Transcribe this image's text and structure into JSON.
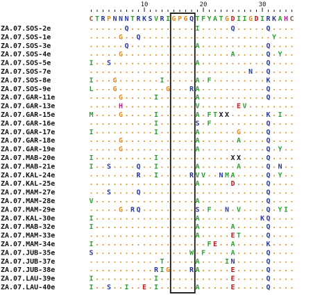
{
  "colors": {
    "A": "#2e9e2e",
    "C": "#8a5a2a",
    "D": "#c01818",
    "E": "#c01818",
    "F": "#2e9e2e",
    "G": "#e08a1a",
    "H": "#c01898",
    "I": "#2e9e2e",
    "K": "#2a3a9a",
    "L": "#2e9e2e",
    "M": "#2e9e2e",
    "N": "#2a3a9a",
    "P": "#e08a1a",
    "Q": "#2a3a9a",
    "R": "#2a3a9a",
    "S": "#2a3a9a",
    "T": "#2e9e2e",
    "V": "#2e9e2e",
    "W": "#2e9e2e",
    "X": "#111111",
    "Y": "#2e9e2e",
    "dot": "#e08a1a"
  },
  "ruler": {
    "ticks": [
      {
        "label": "10",
        "col": 10
      },
      {
        "label": "20",
        "col": 20
      },
      {
        "label": "30",
        "col": 30
      }
    ]
  },
  "consensus": "CTRPNNNTRK SVRIGPGQTF YATGDIIGDI RKAHC",
  "rows": [
    {
      "name": "ZA.07.SOS-2e",
      "residues": [
        [
          7,
          "Q"
        ],
        [
          19,
          "I"
        ],
        [
          25,
          "Q"
        ],
        [
          31,
          "Q"
        ]
      ]
    },
    {
      "name": "ZA.07.SOS-1e",
      "residues": [
        [
          6,
          "G"
        ],
        [
          9,
          "Q"
        ],
        [
          32,
          "Y"
        ]
      ]
    },
    {
      "name": "ZA.07.SOS-3e",
      "residues": [
        [
          7,
          "Q"
        ],
        [
          19,
          "A"
        ],
        [
          31,
          "Q"
        ]
      ]
    },
    {
      "name": "ZA.07.SOS-4e",
      "residues": [
        [
          6,
          "G"
        ],
        [
          25,
          "A"
        ],
        [
          31,
          "Q"
        ],
        [
          33,
          "Y"
        ]
      ]
    },
    {
      "name": "ZA.07.SOS-5e",
      "residues": [
        [
          1,
          "I"
        ],
        [
          4,
          "S"
        ],
        [
          19,
          "A"
        ],
        [
          31,
          "Q"
        ]
      ]
    },
    {
      "name": "ZA.07.SOS-7e",
      "residues": [
        [
          28,
          "N"
        ],
        [
          31,
          "Q"
        ]
      ]
    },
    {
      "name": "ZA.07.SOS-8e",
      "residues": [
        [
          1,
          "I"
        ],
        [
          5,
          "G"
        ],
        [
          13,
          "I"
        ],
        [
          19,
          "A"
        ],
        [
          21,
          "F"
        ],
        [
          31,
          "K"
        ]
      ]
    },
    {
      "name": "ZA.07.SOS-9e",
      "residues": [
        [
          1,
          "L"
        ],
        [
          5,
          "G"
        ],
        [
          14,
          "G"
        ],
        [
          18,
          "RA"
        ],
        [
          31,
          "Q"
        ]
      ]
    },
    {
      "name": "ZA.07.GAR-11e",
      "residues": [
        [
          6,
          "G"
        ],
        [
          12,
          "I"
        ],
        [
          19,
          "A"
        ],
        [
          31,
          "Q"
        ]
      ]
    },
    {
      "name": "ZA.07.GAR-13e",
      "residues": [
        [
          6,
          "H"
        ],
        [
          19,
          "V"
        ],
        [
          26,
          "E"
        ],
        [
          27,
          "V"
        ]
      ]
    },
    {
      "name": "ZA.07.GAR-15e",
      "residues": [
        [
          1,
          "M"
        ],
        [
          6,
          "G"
        ],
        [
          12,
          "I"
        ],
        [
          19,
          "A"
        ],
        [
          21,
          "F"
        ],
        [
          22,
          "T"
        ],
        [
          23,
          "X"
        ],
        [
          24,
          "X"
        ],
        [
          31,
          "K"
        ],
        [
          33,
          "I"
        ]
      ]
    },
    {
      "name": "ZA.07.GAR-16e",
      "residues": [
        [
          12,
          "I"
        ],
        [
          19,
          "S"
        ],
        [
          21,
          "F"
        ],
        [
          31,
          "Q"
        ]
      ]
    },
    {
      "name": "ZA.07.GAR-17e",
      "residues": [
        [
          1,
          "I"
        ],
        [
          12,
          "I"
        ],
        [
          19,
          "A"
        ],
        [
          26,
          "G"
        ],
        [
          31,
          "Q"
        ]
      ]
    },
    {
      "name": "ZA.07.GAR-18e",
      "residues": [
        [
          6,
          "G"
        ],
        [
          19,
          "A"
        ],
        [
          26,
          "A"
        ],
        [
          31,
          "Q"
        ]
      ]
    },
    {
      "name": "ZA.07.GAR-19e",
      "residues": [
        [
          6,
          "G"
        ],
        [
          19,
          "A"
        ],
        [
          31,
          "Q"
        ],
        [
          33,
          "Y"
        ]
      ]
    },
    {
      "name": "ZA.07.MAB-20e",
      "residues": [
        [
          1,
          "I"
        ],
        [
          12,
          "I"
        ],
        [
          25,
          "X"
        ],
        [
          26,
          "X"
        ],
        [
          31,
          "Q"
        ]
      ]
    },
    {
      "name": "ZA.07.MAB-21e",
      "residues": [
        [
          1,
          "I"
        ],
        [
          4,
          "S"
        ],
        [
          9,
          "Q"
        ],
        [
          12,
          "I"
        ],
        [
          19,
          "A"
        ],
        [
          26,
          "A"
        ],
        [
          31,
          "Q"
        ],
        [
          33,
          "N"
        ]
      ]
    },
    {
      "name": "ZA.07.KAL-24e",
      "residues": [
        [
          9,
          "R"
        ],
        [
          12,
          "I"
        ],
        [
          18,
          "R"
        ],
        [
          19,
          "V"
        ],
        [
          20,
          "V"
        ],
        [
          23,
          "N"
        ],
        [
          24,
          "M"
        ],
        [
          25,
          "A"
        ],
        [
          31,
          "Q"
        ],
        [
          33,
          "Y"
        ]
      ]
    },
    {
      "name": "ZA.07.KAL-25e",
      "residues": [
        [
          19,
          "A"
        ],
        [
          25,
          "D"
        ],
        [
          31,
          "Q"
        ]
      ]
    },
    {
      "name": "ZA.07.MAM-27e",
      "residues": [
        [
          4,
          "S"
        ],
        [
          9,
          "Q"
        ],
        [
          31,
          "Q"
        ]
      ]
    },
    {
      "name": "ZA.07.MAM-28e",
      "residues": [
        [
          1,
          "V"
        ],
        [
          19,
          "A"
        ],
        [
          31,
          "Q"
        ]
      ]
    },
    {
      "name": "ZA.07.MAM-29e",
      "residues": [
        [
          6,
          "G"
        ],
        [
          8,
          "R"
        ],
        [
          9,
          "Q"
        ],
        [
          19,
          "S"
        ],
        [
          21,
          "F"
        ],
        [
          24,
          "N"
        ],
        [
          26,
          "V"
        ],
        [
          31,
          "Q"
        ],
        [
          33,
          "Y"
        ],
        [
          34,
          "I"
        ]
      ]
    },
    {
      "name": "ZA.07.KAL-30e",
      "residues": [
        [
          1,
          "I"
        ],
        [
          19,
          "A"
        ],
        [
          30,
          "K"
        ],
        [
          31,
          "Q"
        ]
      ]
    },
    {
      "name": "ZA.07.MAB-32e",
      "residues": [
        [
          1,
          "I"
        ],
        [
          19,
          "A"
        ],
        [
          25,
          "A"
        ],
        [
          31,
          "Q"
        ]
      ]
    },
    {
      "name": "ZA.07.MAM-33e",
      "residues": [
        [
          19,
          "A"
        ],
        [
          25,
          "E"
        ],
        [
          26,
          "T"
        ],
        [
          31,
          "Q"
        ]
      ]
    },
    {
      "name": "ZA.07.MAM-34e",
      "residues": [
        [
          1,
          "I"
        ],
        [
          21,
          "F"
        ],
        [
          22,
          "E"
        ],
        [
          25,
          "A"
        ],
        [
          31,
          "K"
        ]
      ]
    },
    {
      "name": "ZA.07.JUB-35e",
      "residues": [
        [
          1,
          "S"
        ],
        [
          18,
          "W"
        ],
        [
          20,
          "F"
        ],
        [
          25,
          "A"
        ],
        [
          31,
          "Q"
        ]
      ]
    },
    {
      "name": "ZA.07.JUB-37e",
      "residues": [
        [
          13,
          "T"
        ],
        [
          19,
          "A"
        ],
        [
          24,
          "I"
        ],
        [
          25,
          "N"
        ],
        [
          31,
          "Q"
        ]
      ]
    },
    {
      "name": "ZA.07.JUB-38e",
      "residues": [
        [
          12,
          "R"
        ],
        [
          13,
          "I"
        ],
        [
          14,
          "G"
        ],
        [
          18,
          "R"
        ],
        [
          19,
          "A"
        ],
        [
          25,
          "E"
        ],
        [
          31,
          "Q"
        ]
      ]
    },
    {
      "name": "ZA.07.LAU-39e",
      "residues": [
        [
          1,
          "I"
        ],
        [
          12,
          "I"
        ],
        [
          25,
          "E"
        ],
        [
          31,
          "Q"
        ]
      ]
    },
    {
      "name": "ZA.07.LAU-40e",
      "residues": [
        [
          1,
          "I"
        ],
        [
          4,
          "S"
        ],
        [
          7,
          "I"
        ],
        [
          10,
          "E"
        ],
        [
          12,
          "I"
        ],
        [
          19,
          "A"
        ],
        [
          25,
          "E"
        ],
        [
          31,
          "Q"
        ]
      ]
    }
  ]
}
